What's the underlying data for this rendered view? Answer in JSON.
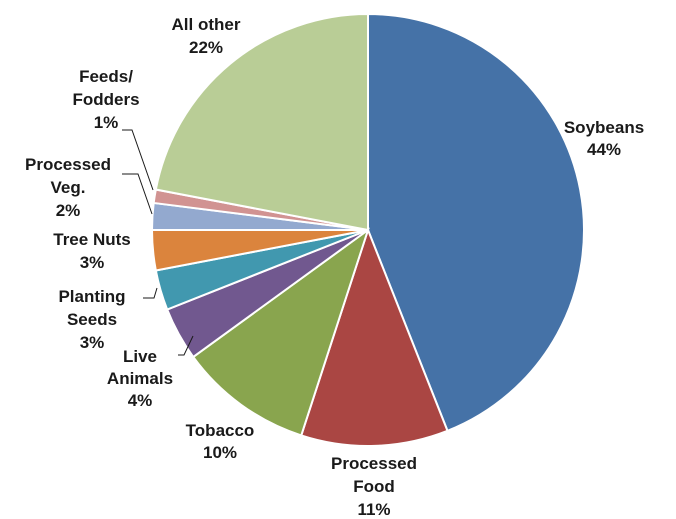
{
  "chart_data": {
    "type": "pie",
    "title": "",
    "slices": [
      {
        "name": "Soybeans",
        "label_lines": [
          "Soybeans",
          "44%"
        ],
        "value": 44,
        "color": "#4572a7"
      },
      {
        "name": "Processed Food",
        "label_lines": [
          "Processed",
          "Food",
          "11%"
        ],
        "value": 11,
        "color": "#aa4643"
      },
      {
        "name": "Tobacco",
        "label_lines": [
          "Tobacco",
          "10%"
        ],
        "value": 10,
        "color": "#89a54e"
      },
      {
        "name": "Live Animals",
        "label_lines": [
          "Live",
          "Animals",
          "4%"
        ],
        "value": 4,
        "color": "#71588f"
      },
      {
        "name": "Planting Seeds",
        "label_lines": [
          "Planting",
          "Seeds",
          "3%"
        ],
        "value": 3,
        "color": "#4198af"
      },
      {
        "name": "Tree Nuts",
        "label_lines": [
          "Tree Nuts",
          "3%"
        ],
        "value": 3,
        "color": "#db843d"
      },
      {
        "name": "Processed Veg.",
        "label_lines": [
          "Processed",
          "Veg.",
          "2%"
        ],
        "value": 2,
        "color": "#93a9cf"
      },
      {
        "name": "Feeds/Fodders",
        "label_lines": [
          "Feeds/",
          "Fodders",
          "1%"
        ],
        "value": 1,
        "color": "#d19392"
      },
      {
        "name": "All other",
        "label_lines": [
          "All  other",
          "22%"
        ],
        "value": 22,
        "color": "#b9cd96"
      }
    ]
  }
}
